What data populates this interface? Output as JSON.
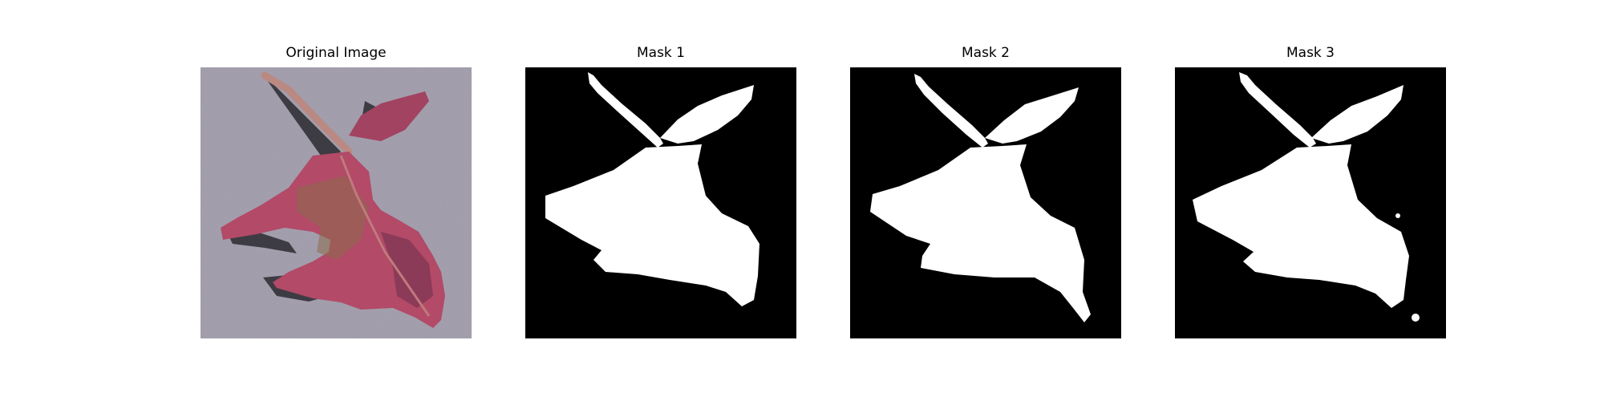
{
  "figure": {
    "panels": [
      {
        "title": "Original Image",
        "kind": "photo",
        "subject": "leaf-photo"
      },
      {
        "title": "Mask 1",
        "kind": "mask"
      },
      {
        "title": "Mask 2",
        "kind": "mask"
      },
      {
        "title": "Mask 3",
        "kind": "mask"
      }
    ]
  },
  "colors": {
    "background": "#ffffff",
    "mask_background": "#000000",
    "mask_foreground": "#ffffff",
    "pavement": "#9c97a6",
    "leaf_main": "#b24a68",
    "leaf_dark": "#7d3552",
    "leaf_olive": "#8d6b4a",
    "stem": "#b98982",
    "shadow": "#2c2a30"
  }
}
